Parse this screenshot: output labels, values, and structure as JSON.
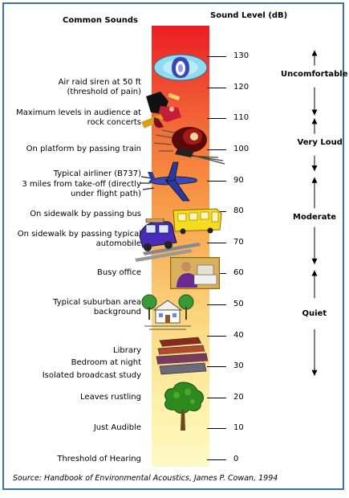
{
  "headers": {
    "left": "Common Sounds",
    "right": "Sound Level (dB)"
  },
  "scale": {
    "ticks": [
      130,
      120,
      110,
      100,
      90,
      80,
      70,
      60,
      50,
      40,
      30,
      20,
      10,
      0
    ]
  },
  "sources": [
    {
      "lines": [
        "Air raid siren at 50 ft",
        "(threshold of pain)"
      ],
      "db": 120
    },
    {
      "lines": [
        "Maximum levels in audience at",
        "rock concerts"
      ],
      "db": 110
    },
    {
      "lines": [
        "On platform by passing train"
      ],
      "db": 100
    },
    {
      "lines": [
        "Typical airliner (B737)"
      ],
      "db": 92
    },
    {
      "lines": [
        "3 miles from take-off (directly",
        "under flight path)"
      ],
      "db": 87
    },
    {
      "lines": [
        "On sidewalk by passing bus"
      ],
      "db": 79
    },
    {
      "lines": [
        "On sidewalk by passing typical",
        "automobile"
      ],
      "db": 71
    },
    {
      "lines": [
        "Busy office"
      ],
      "db": 60
    },
    {
      "lines": [
        "Typical suburban area",
        "background"
      ],
      "db": 49
    },
    {
      "lines": [
        "Library"
      ],
      "db": 35
    },
    {
      "lines": [
        "Bedroom at night"
      ],
      "db": 31
    },
    {
      "lines": [
        "Isolated broadcast study"
      ],
      "db": 27
    },
    {
      "lines": [
        "Leaves rustling"
      ],
      "db": 20
    },
    {
      "lines": [
        "Just Audible"
      ],
      "db": 10
    },
    {
      "lines": [
        "Threshold of Hearing"
      ],
      "db": 0
    }
  ],
  "categories": [
    {
      "label": "Uncomfortable",
      "label_db": 124
    },
    {
      "label": "Very Loud",
      "label_db": 102
    },
    {
      "label": "Moderate",
      "label_db": 78
    },
    {
      "label": "Quiet",
      "label_db": 47
    }
  ],
  "category_arrows": [
    {
      "from_db": 132,
      "to_db": 127,
      "arrow": "up"
    },
    {
      "from_db": 120,
      "to_db": 111,
      "arrow": "down"
    },
    {
      "from_db": 110,
      "to_db": 105,
      "arrow": "up"
    },
    {
      "from_db": 98,
      "to_db": 93,
      "arrow": "down"
    },
    {
      "from_db": 91,
      "to_db": 81,
      "arrow": "up"
    },
    {
      "from_db": 75,
      "to_db": 63,
      "arrow": "down"
    },
    {
      "from_db": 61,
      "to_db": 52,
      "arrow": "up"
    },
    {
      "from_db": 42,
      "to_db": 27,
      "arrow": "down"
    }
  ],
  "illustrations": [
    "siren-icon",
    "rock-guitarist-icon",
    "train-icon",
    "airplane-icon",
    "bus-icon",
    "car-icon",
    "office-worker-icon",
    "suburban-house-icon",
    "books-icon",
    "tree-icon"
  ],
  "footer": "Source: Handbook of Environmental Acoustics, James P. Cowan, 1994"
}
